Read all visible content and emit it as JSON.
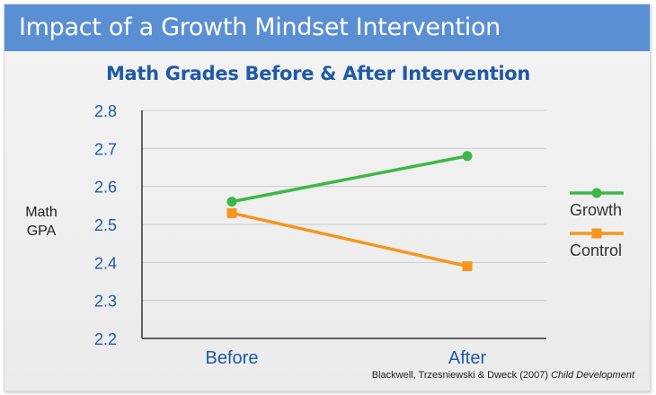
{
  "banner": {
    "title": "Impact of a Growth Mindset Intervention"
  },
  "source": {
    "authors": "Blackwell, Trzesniewski & Dweck (2007)",
    "journal": "Child Development"
  },
  "chart_data": {
    "type": "line",
    "title": "Math Grades Before & After Intervention",
    "xlabel": "",
    "ylabel": "Math GPA",
    "categories": [
      "Before",
      "After"
    ],
    "ylim": [
      2.2,
      2.8
    ],
    "yticks": [
      "2.8",
      "2.7",
      "2.6",
      "2.5",
      "2.4",
      "2.3",
      "2.2"
    ],
    "grid": true,
    "legend_position": "right",
    "series": [
      {
        "name": "Growth",
        "values": [
          2.56,
          2.68
        ],
        "color": "#3cb846",
        "marker": "circle"
      },
      {
        "name": "Control",
        "values": [
          2.53,
          2.39
        ],
        "color": "#f5961e",
        "marker": "square"
      }
    ]
  }
}
